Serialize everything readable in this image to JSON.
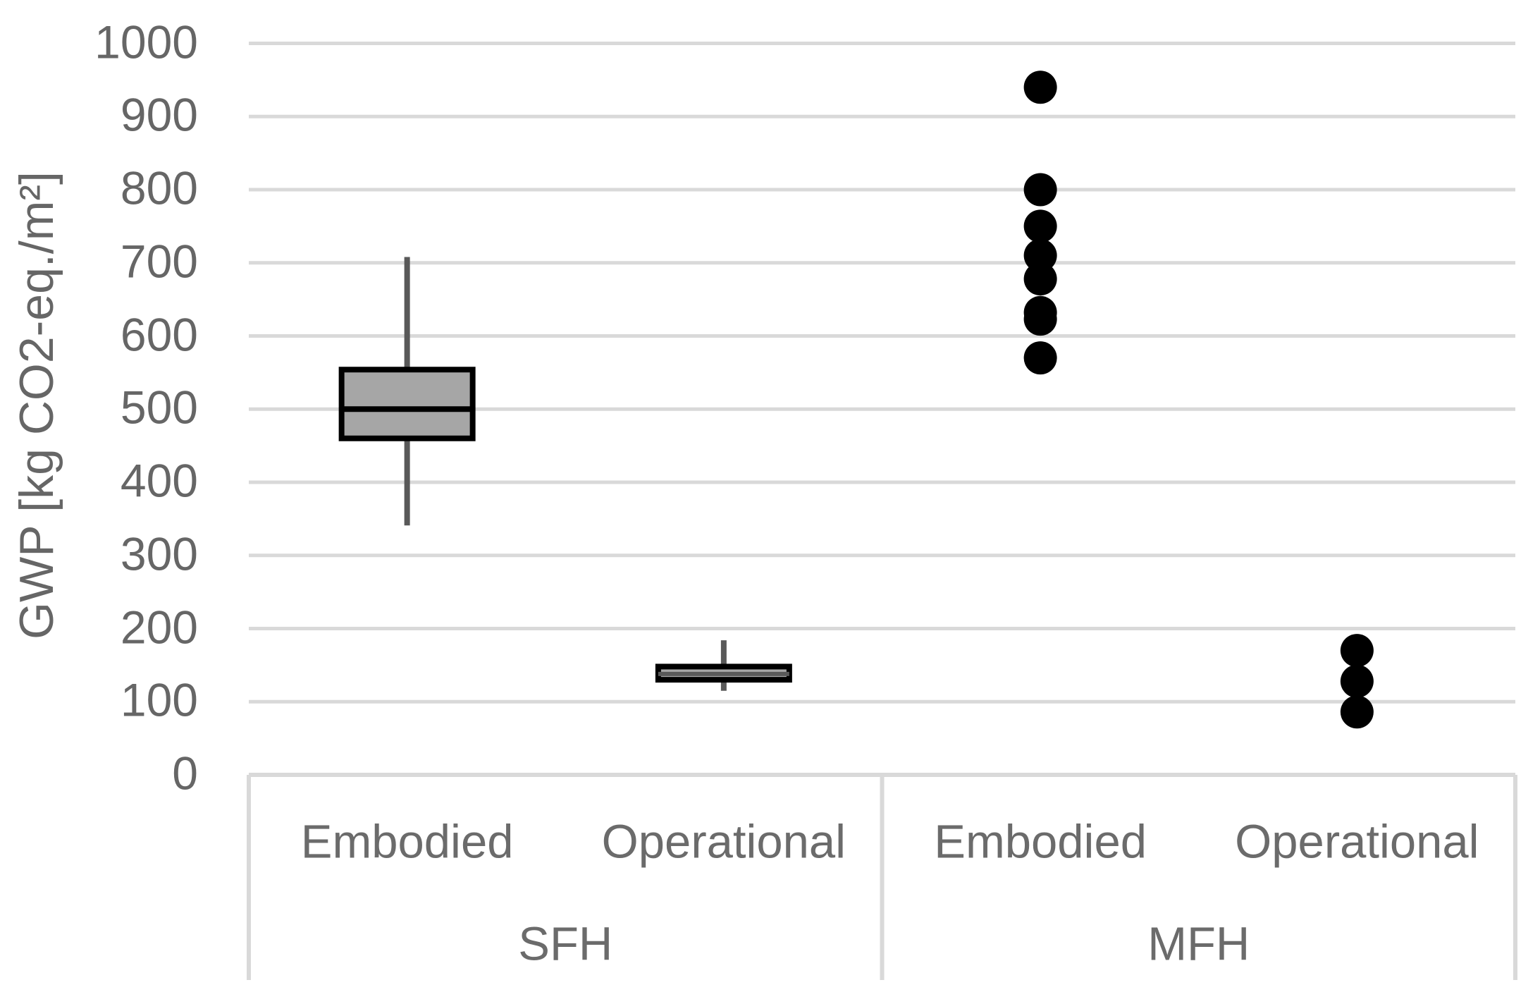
{
  "chart_data": {
    "type": "box",
    "title": "",
    "ylabel": "GWP [kg CO2-eq./m²]",
    "xlabel": "",
    "ylim": [
      0,
      1000
    ],
    "yticks": [
      0,
      100,
      200,
      300,
      400,
      500,
      600,
      700,
      800,
      900,
      1000
    ],
    "grid": true,
    "legend": false,
    "groups": [
      {
        "label": "SFH",
        "items": [
          {
            "label": "Embodied",
            "style": "box",
            "box": {
              "min": 341,
              "q1": 460,
              "median": 500,
              "q3": 554,
              "max": 708
            }
          },
          {
            "label": "Operational",
            "style": "box",
            "box": {
              "min": 115,
              "q1": 130,
              "median": 138,
              "q3": 148,
              "max": 184
            }
          }
        ]
      },
      {
        "label": "MFH",
        "items": [
          {
            "label": "Embodied",
            "style": "points",
            "values": [
              940,
              800,
              750,
              710,
              678,
              632,
              623,
              570
            ]
          },
          {
            "label": "Operational",
            "style": "points",
            "values": [
              170,
              128,
              86
            ]
          }
        ]
      }
    ],
    "colors": {
      "box_fill": "#a6a6a6",
      "box_border": "#000000",
      "median_thick": "#000000",
      "median_thin": "#595959",
      "whisker": "#595959",
      "point": "#000000",
      "gridline": "#d9d9d9",
      "axis_line": "#d9d9d9",
      "table_border": "#d9d9d9",
      "label_text": "#666666"
    }
  }
}
